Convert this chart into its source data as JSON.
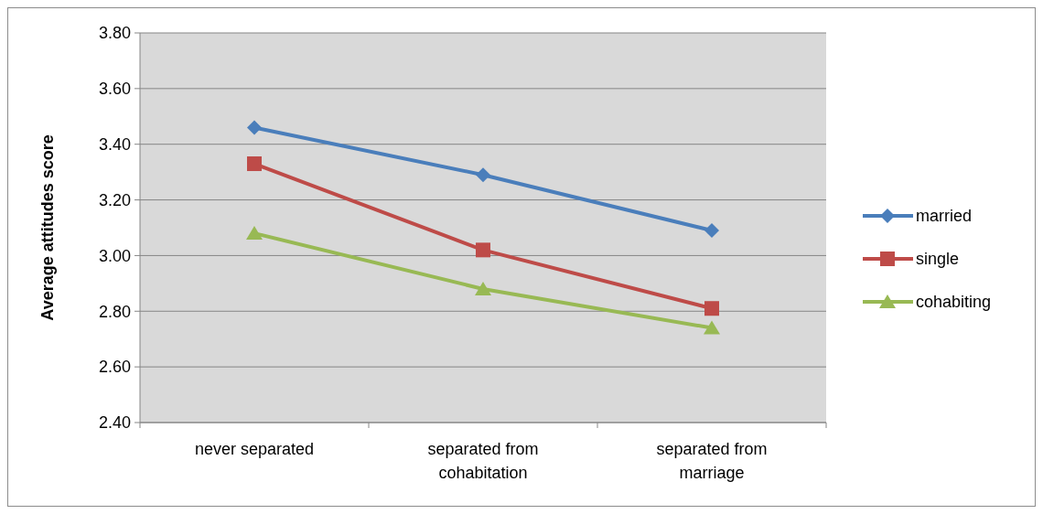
{
  "chart_data": {
    "type": "line",
    "ylabel": "Average attitudes score",
    "categories": [
      "never separated",
      "separated from cohabitation",
      "separated from marriage"
    ],
    "series": [
      {
        "name": "married",
        "color": "#4a7ebb",
        "marker": "diamond",
        "values": [
          3.46,
          3.29,
          3.09
        ]
      },
      {
        "name": "single",
        "color": "#be4b48",
        "marker": "square",
        "values": [
          3.33,
          3.02,
          2.81
        ]
      },
      {
        "name": "cohabiting",
        "color": "#98b954",
        "marker": "triangle",
        "values": [
          3.08,
          2.88,
          2.74
        ]
      }
    ],
    "ylim": [
      2.4,
      3.8
    ],
    "yticks": [
      {
        "value": 2.4,
        "label": "2.40"
      },
      {
        "value": 2.6,
        "label": "2.60"
      },
      {
        "value": 2.8,
        "label": "2.80"
      },
      {
        "value": 3.0,
        "label": "3.00"
      },
      {
        "value": 3.2,
        "label": "3.20"
      },
      {
        "value": 3.4,
        "label": "3.40"
      },
      {
        "value": 3.6,
        "label": "3.60"
      },
      {
        "value": 3.8,
        "label": "3.80"
      }
    ],
    "grid": "y",
    "legend": "right",
    "line_style": "solid"
  }
}
